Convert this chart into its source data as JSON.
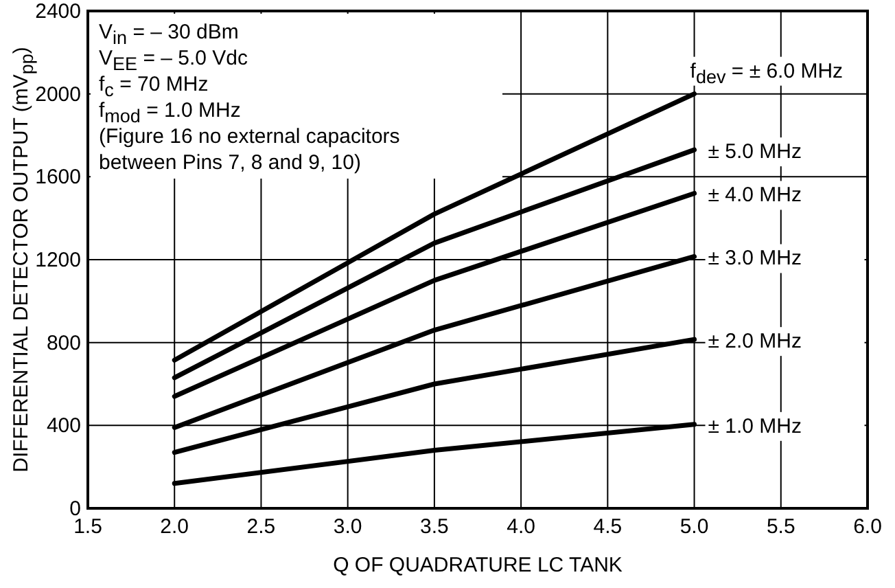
{
  "chart_data": {
    "type": "line",
    "xlabel": "Q OF QUADRATURE LC TANK",
    "ylabel": "DIFFERENTIAL DETECTOR OUTPUT (mV$_{pp}$)",
    "x": [
      2.0,
      3.5,
      5.0
    ],
    "series": [
      {
        "name": "f$_{dev}$ = ± 6.0 MHz",
        "color": "#000000",
        "values": [
          715,
          1420,
          2000
        ]
      },
      {
        "name": "± 5.0 MHz",
        "color": "#000000",
        "values": [
          630,
          1280,
          1730
        ]
      },
      {
        "name": "± 4.0 MHz",
        "color": "#000000",
        "values": [
          540,
          1100,
          1520
        ]
      },
      {
        "name": "± 3.0 MHz",
        "color": "#000000",
        "values": [
          390,
          860,
          1215
        ]
      },
      {
        "name": "± 2.0 MHz",
        "color": "#000000",
        "values": [
          270,
          600,
          815
        ]
      },
      {
        "name": "± 1.0 MHz",
        "color": "#000000",
        "values": [
          120,
          280,
          405
        ]
      }
    ],
    "annotations": [
      "V$_{in}$ = – 30 dBm",
      "V$_{EE}$ = – 5.0 Vdc",
      "f$_{c}$ = 70 MHz",
      "f$_{mod}$ = 1.0 MHz",
      "(Figure 16 no external capacitors",
      "between Pins 7, 8 and 9, 10)"
    ],
    "xlim": [
      1.5,
      6.0
    ],
    "xticks": [
      {
        "value": 1.5,
        "label": "1.5"
      },
      {
        "value": 2,
        "label": "2.0"
      },
      {
        "value": 2.5,
        "label": "2.5"
      },
      {
        "value": 3,
        "label": "3.0"
      },
      {
        "value": 3.5,
        "label": "3.5"
      },
      {
        "value": 4,
        "label": "4.0"
      },
      {
        "value": 4.5,
        "label": "4.5"
      },
      {
        "value": 5,
        "label": "5.0"
      },
      {
        "value": 5.5,
        "label": "5.5"
      },
      {
        "value": 6,
        "label": "6.0"
      }
    ],
    "ylim": [
      0,
      2400
    ],
    "yticks": [
      0,
      400,
      800,
      1200,
      1600,
      2000,
      2400
    ],
    "grid": true,
    "marker": "none",
    "line_style": "solid"
  }
}
